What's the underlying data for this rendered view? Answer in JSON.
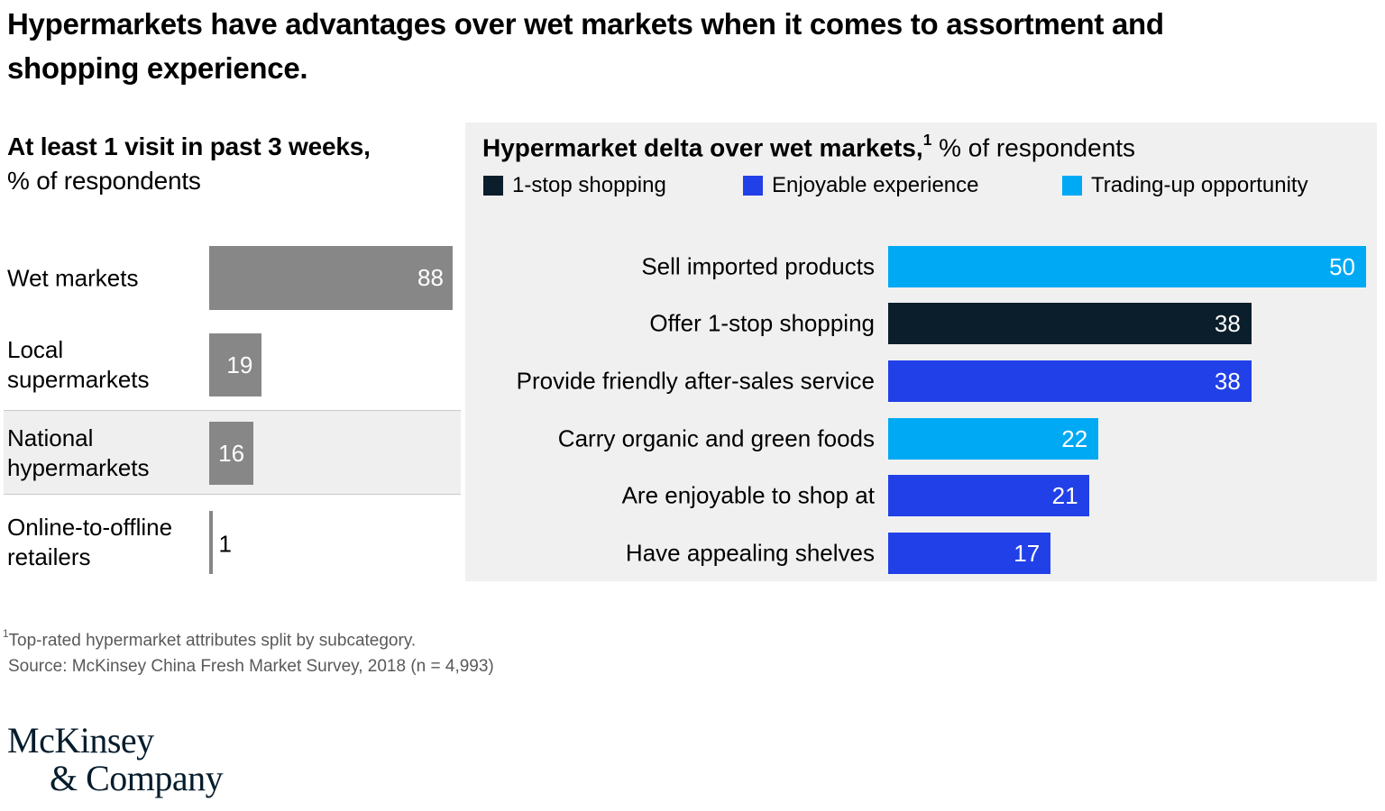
{
  "page": {
    "title": "Hypermarkets have advantages over wet markets when it comes to assortment and shopping experience."
  },
  "colors": {
    "navy": "#0B1E2B",
    "blue": "#2140E8",
    "cyan": "#00A9F4",
    "gray_bar": "#878787",
    "panel_bg": "#F0F0F0",
    "highlight_bg": "#EFEFEF",
    "footnote_text": "#595959",
    "logo_navy": "#051C2C"
  },
  "chart_data": [
    {
      "type": "bar",
      "orientation": "horizontal",
      "title_bold": "At least 1 visit in past 3 weeks,",
      "title_sub": "% of respondents",
      "categories": [
        "Wet markets",
        "Local supermarkets",
        "National hypermarkets",
        "Online-to-offline retailers"
      ],
      "values": [
        88,
        19,
        16,
        1
      ],
      "bars": [
        {
          "label": "Wet markets",
          "value": 88,
          "highlighted": false
        },
        {
          "label": "Local supermarkets",
          "value": 19,
          "highlighted": false
        },
        {
          "label": "National hypermarkets",
          "value": 16,
          "highlighted": true
        },
        {
          "label": "Online-to-offline retailers",
          "value": 1,
          "highlighted": false
        }
      ],
      "bar_color": "#878787",
      "xlim": [
        0,
        100
      ],
      "grid": false,
      "value_labels": "inside-right, white; outside black when bar too small"
    },
    {
      "type": "bar",
      "orientation": "horizontal",
      "title_bold": "Hypermarket delta over wet markets,",
      "title_sup": "1",
      "title_rest": " % of respondents",
      "legend": [
        {
          "label": "1-stop shopping",
          "color": "#0B1E2B"
        },
        {
          "label": "Enjoyable experience",
          "color": "#2140E8"
        },
        {
          "label": "Trading-up opportunity",
          "color": "#00A9F4"
        }
      ],
      "legend_position": "top",
      "categories": [
        "Sell imported products",
        "Offer 1-stop shopping",
        "Provide friendly after-sales service",
        "Carry organic and green foods",
        "Are enjoyable to shop at",
        "Have appealing shelves"
      ],
      "values": [
        50,
        38,
        38,
        22,
        21,
        17
      ],
      "bars": [
        {
          "label": "Sell imported products",
          "value": 50,
          "series": "Trading-up opportunity"
        },
        {
          "label": "Offer 1-stop shopping",
          "value": 38,
          "series": "1-stop shopping"
        },
        {
          "label": "Provide friendly after-sales service",
          "value": 38,
          "series": "Enjoyable experience"
        },
        {
          "label": "Carry organic and green foods",
          "value": 22,
          "series": "Trading-up opportunity"
        },
        {
          "label": "Are enjoyable to shop at",
          "value": 21,
          "series": "Enjoyable experience"
        },
        {
          "label": "Have appealing shelves",
          "value": 17,
          "series": "Enjoyable experience"
        }
      ],
      "xlim": [
        0,
        52
      ],
      "grid": false,
      "value_labels": "inside-right, white"
    }
  ],
  "footnote": {
    "sup": "1",
    "line1": "Top-rated hypermarket attributes split by subcategory.",
    "line2": "Source: McKinsey China Fresh Market Survey, 2018 (n = 4,993)"
  },
  "logo": {
    "line1": "McKinsey",
    "line2": "& Company"
  }
}
